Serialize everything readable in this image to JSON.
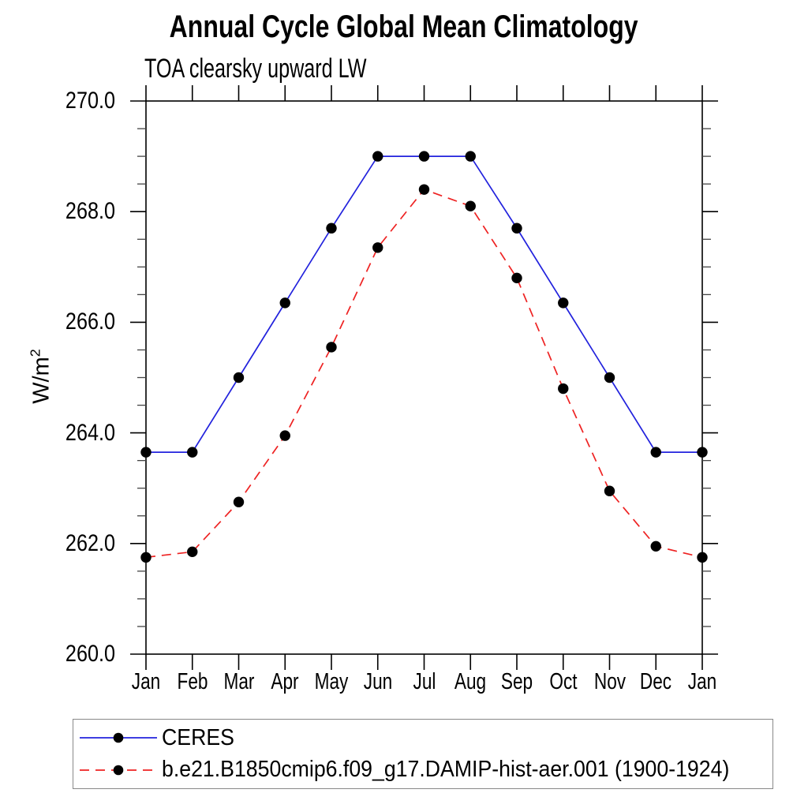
{
  "chart_data": {
    "type": "line",
    "title": "Annual Cycle Global Mean Climatology",
    "subtitle": "TOA clearsky upward LW",
    "ylabel_base": "W/m",
    "ylabel_exponent": "2",
    "categories": [
      "Jan",
      "Feb",
      "Mar",
      "Apr",
      "May",
      "Jun",
      "Jul",
      "Aug",
      "Sep",
      "Oct",
      "Nov",
      "Dec",
      "Jan"
    ],
    "ylim": [
      260.0,
      270.0
    ],
    "ytick_interval": 2.0,
    "ytick_minor_interval": 0.5,
    "yticklabels": [
      "270.0",
      "268.0",
      "266.0",
      "264.0",
      "262.0",
      "260.0"
    ],
    "grid": false,
    "legend_position": "bottom-left-outside",
    "marker": {
      "shape": "circle",
      "color": "#000000"
    },
    "axis_color": "#000000",
    "series": [
      {
        "name": "CERES",
        "color": "#2222dd",
        "line_style": "solid",
        "values": [
          263.65,
          263.65,
          265.0,
          266.35,
          267.7,
          269.0,
          269.0,
          269.0,
          267.7,
          266.35,
          265.0,
          263.65,
          263.65
        ]
      },
      {
        "name": "b.e21.B1850cmip6.f09_g17.DAMIP-hist-aer.001 (1900-1924)",
        "color": "#ee2222",
        "line_style": "dashed",
        "values": [
          261.75,
          261.85,
          262.75,
          263.95,
          265.55,
          267.35,
          268.4,
          268.1,
          266.8,
          264.8,
          262.95,
          261.95,
          261.75
        ]
      }
    ]
  }
}
